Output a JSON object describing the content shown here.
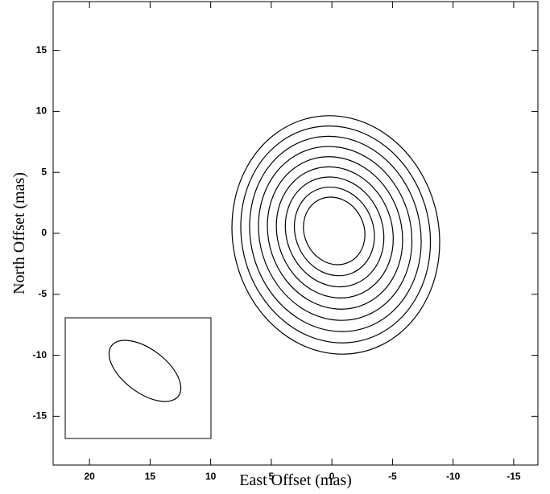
{
  "chart_data": {
    "type": "contour",
    "xlabel": "East Offset (mas)",
    "ylabel": "North Offset (mas)",
    "xlim": [
      23,
      -17
    ],
    "ylim": [
      -19,
      19
    ],
    "xticks": [
      20,
      15,
      10,
      5,
      0,
      -5,
      -10,
      -15
    ],
    "yticks": [
      15,
      10,
      5,
      0,
      -5,
      -10,
      -15
    ]
  }
}
